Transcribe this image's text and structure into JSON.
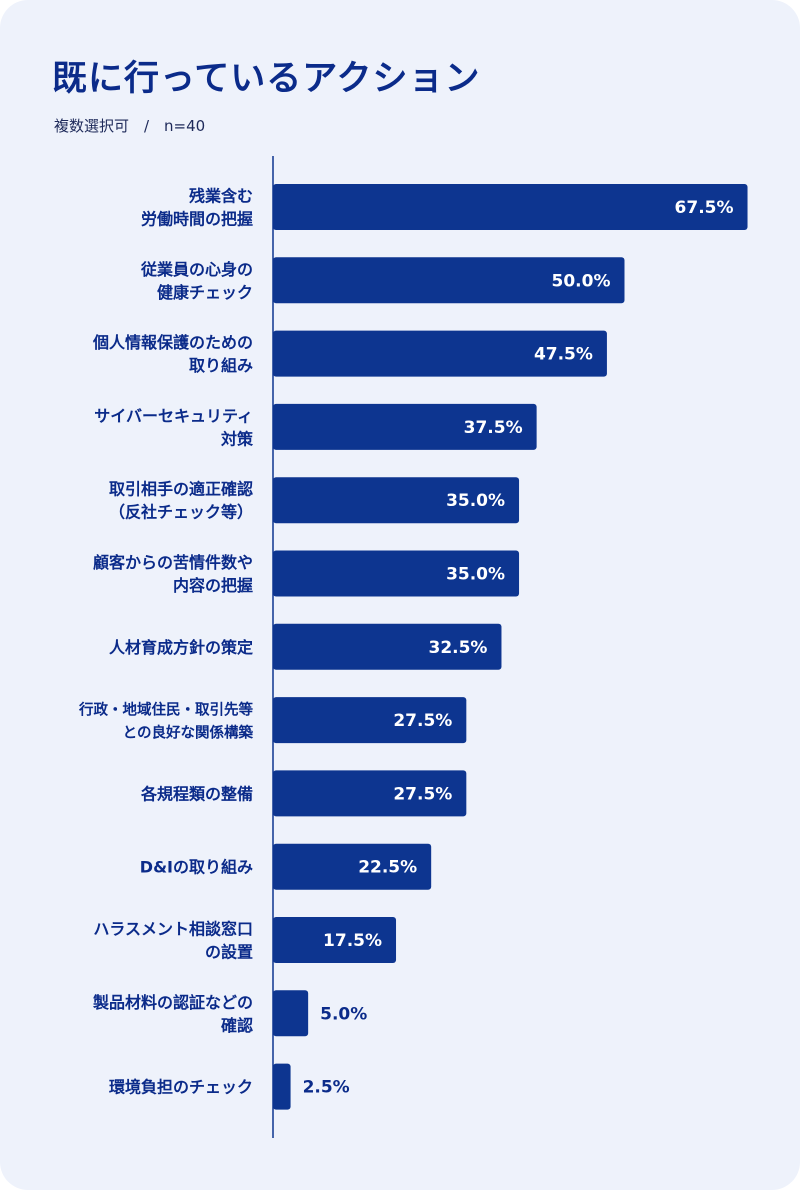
{
  "title": "既に行っているアクション",
  "subtitle": "複数選択可　/　n=40",
  "colors": {
    "bar": "#0d3590",
    "axis": "#0d3590",
    "label": "#0b2b8a",
    "background": "#eef2fb"
  },
  "chart_data": {
    "type": "bar",
    "orientation": "horizontal",
    "categories": [
      [
        "残業含む",
        "労働時間の把握"
      ],
      [
        "従業員の心身の",
        "健康チェック"
      ],
      [
        "個人情報保護のための",
        "取り組み"
      ],
      [
        "サイバーセキュリティ",
        "対策"
      ],
      [
        "取引相手の適正確認",
        "（反社チェック等）"
      ],
      [
        "顧客からの苦情件数や",
        "内容の把握"
      ],
      [
        "人材育成方針の策定"
      ],
      [
        "行政・地域住民・取引先等",
        "との良好な関係構築"
      ],
      [
        "各規程類の整備"
      ],
      [
        "D&Iの取り組み"
      ],
      [
        "ハラスメント相談窓口",
        "の設置"
      ],
      [
        "製品材料の認証などの",
        "確認"
      ],
      [
        "環境負担のチェック"
      ]
    ],
    "values": [
      67.5,
      50.0,
      47.5,
      37.5,
      35.0,
      35.0,
      32.5,
      27.5,
      27.5,
      22.5,
      17.5,
      5.0,
      2.5
    ],
    "value_labels": [
      "67.5%",
      "50.0%",
      "47.5%",
      "37.5%",
      "35.0%",
      "35.0%",
      "32.5%",
      "27.5%",
      "27.5%",
      "22.5%",
      "17.5%",
      "5.0%",
      "2.5%"
    ],
    "unit": "%",
    "grid": false,
    "legend": "none"
  }
}
